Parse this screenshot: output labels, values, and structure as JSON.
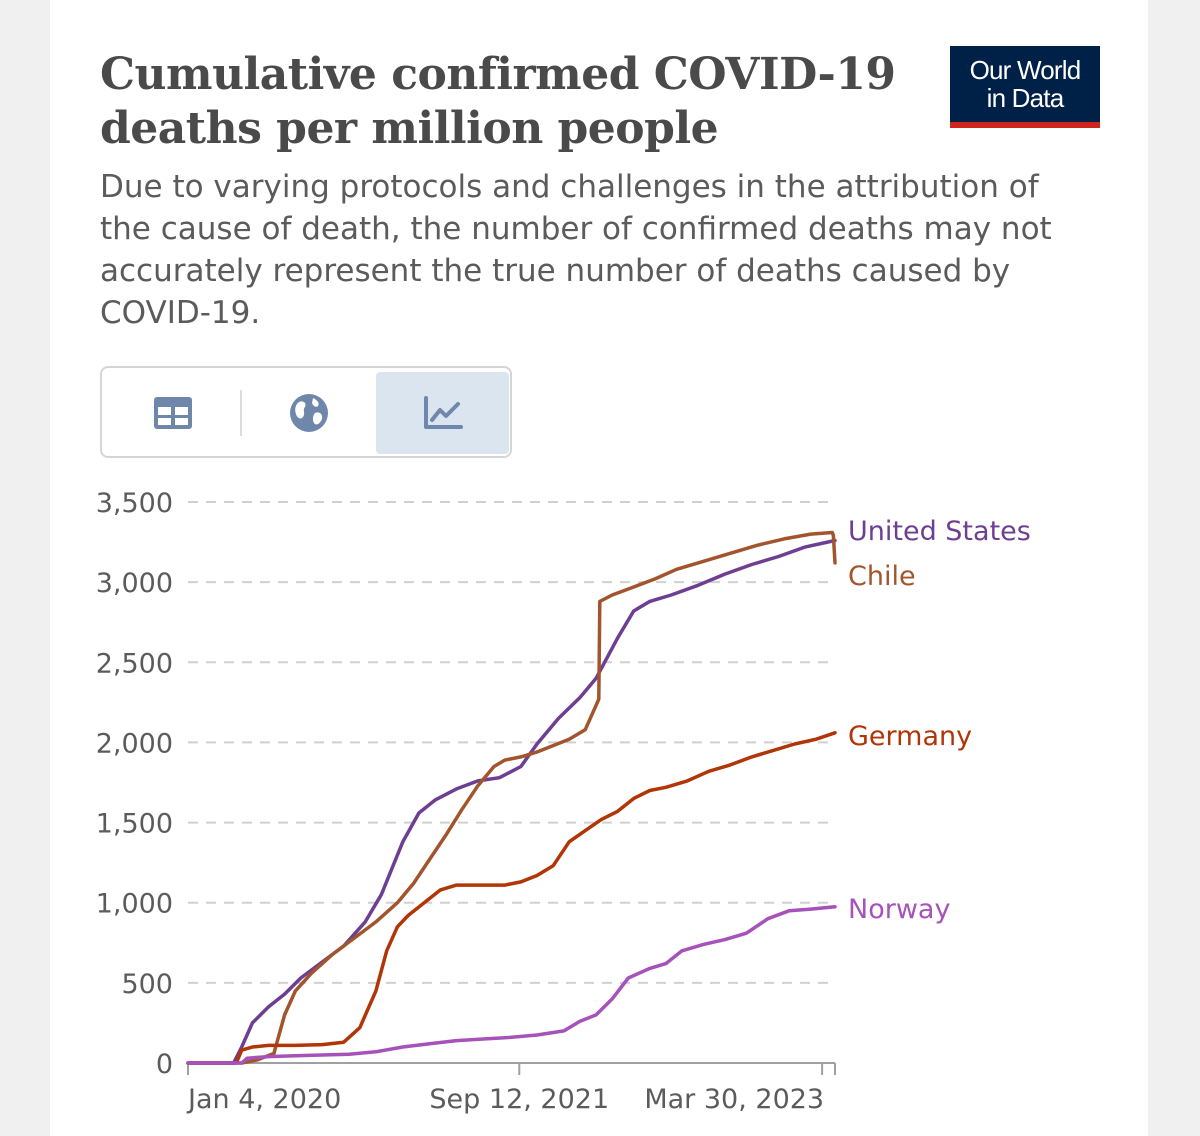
{
  "header": {
    "title": "Cumulative confirmed COVID-19 deaths per million people",
    "subtitle": "Due to varying protocols and challenges in the attribution of the cause of death, the number of confirmed deaths may not accurately represent the true number of deaths caused by COVID-19.",
    "logo_line1": "Our World",
    "logo_line2": "in Data"
  },
  "toolbar": {
    "tabs": [
      {
        "name": "table",
        "icon": "table-icon",
        "active": false
      },
      {
        "name": "map",
        "icon": "globe-icon",
        "active": false
      },
      {
        "name": "chart",
        "icon": "line-chart-icon",
        "active": true
      }
    ]
  },
  "colors": {
    "logo_bg": "#002147",
    "logo_accent": "#ce261e",
    "tab_active": "#dbe5f0",
    "icon": "#6e87ab"
  },
  "chart_data": {
    "type": "line",
    "title": "Cumulative confirmed COVID-19 deaths per million people",
    "xlabel": "",
    "ylabel": "",
    "x_unit": "days since Jan 4, 2020",
    "xlim": [
      0,
      1205
    ],
    "ylim": [
      0,
      3500
    ],
    "grid": true,
    "yticks": [
      0,
      500,
      1000,
      1500,
      2000,
      2500,
      3000,
      3500
    ],
    "ytick_labels": [
      "0",
      "500",
      "1,000",
      "1,500",
      "2,000",
      "2,500",
      "3,000",
      "3,500"
    ],
    "xticks": [
      0,
      617,
      1181
    ],
    "xtick_labels": [
      "Jan 4, 2020",
      "Sep 12, 2021",
      "Mar 30, 2023"
    ],
    "legend": "end-of-line labels, right",
    "series": [
      {
        "name": "United States",
        "color": "#6d3e91",
        "x": [
          0,
          85,
          100,
          120,
          150,
          180,
          210,
          250,
          290,
          330,
          360,
          400,
          430,
          460,
          500,
          540,
          580,
          620,
          650,
          690,
          730,
          760,
          800,
          830,
          860,
          900,
          950,
          1000,
          1050,
          1100,
          1150,
          1205
        ],
        "y": [
          0,
          0,
          100,
          250,
          350,
          430,
          530,
          630,
          730,
          880,
          1050,
          1380,
          1560,
          1640,
          1710,
          1760,
          1780,
          1850,
          1990,
          2150,
          2280,
          2400,
          2650,
          2820,
          2880,
          2920,
          2980,
          3050,
          3110,
          3160,
          3220,
          3260
        ]
      },
      {
        "name": "Chile",
        "color": "#a2552c",
        "x": [
          0,
          100,
          130,
          160,
          180,
          200,
          230,
          270,
          310,
          350,
          390,
          420,
          450,
          480,
          510,
          540,
          570,
          590,
          620,
          650,
          680,
          710,
          740,
          765,
          767,
          790,
          830,
          870,
          910,
          960,
          1010,
          1060,
          1110,
          1160,
          1200,
          1202,
          1205
        ],
        "y": [
          0,
          0,
          20,
          60,
          300,
          450,
          560,
          680,
          780,
          880,
          1000,
          1120,
          1270,
          1420,
          1580,
          1730,
          1850,
          1890,
          1910,
          1940,
          1980,
          2020,
          2080,
          2270,
          2880,
          2920,
          2970,
          3020,
          3080,
          3130,
          3180,
          3230,
          3270,
          3300,
          3310,
          3290,
          3120
        ]
      },
      {
        "name": "Germany",
        "color": "#b13507",
        "x": [
          0,
          90,
          100,
          120,
          150,
          200,
          250,
          290,
          320,
          350,
          370,
          390,
          410,
          440,
          470,
          500,
          530,
          560,
          590,
          620,
          650,
          680,
          710,
          740,
          770,
          800,
          830,
          860,
          890,
          930,
          970,
          1010,
          1050,
          1090,
          1130,
          1170,
          1205
        ],
        "y": [
          0,
          0,
          80,
          100,
          110,
          110,
          115,
          130,
          220,
          450,
          700,
          850,
          920,
          1000,
          1080,
          1110,
          1110,
          1110,
          1110,
          1130,
          1170,
          1230,
          1380,
          1450,
          1520,
          1570,
          1650,
          1700,
          1720,
          1760,
          1820,
          1860,
          1910,
          1950,
          1990,
          2020,
          2060
        ]
      },
      {
        "name": "Norway",
        "color": "#a652ba",
        "x": [
          0,
          100,
          110,
          150,
          200,
          250,
          300,
          350,
          400,
          450,
          500,
          550,
          600,
          650,
          700,
          730,
          760,
          790,
          820,
          860,
          890,
          920,
          960,
          1000,
          1040,
          1080,
          1120,
          1160,
          1205
        ],
        "y": [
          0,
          0,
          30,
          40,
          45,
          50,
          55,
          70,
          100,
          120,
          140,
          150,
          160,
          175,
          200,
          260,
          300,
          400,
          530,
          590,
          620,
          700,
          740,
          770,
          810,
          900,
          950,
          960,
          975
        ]
      }
    ]
  }
}
